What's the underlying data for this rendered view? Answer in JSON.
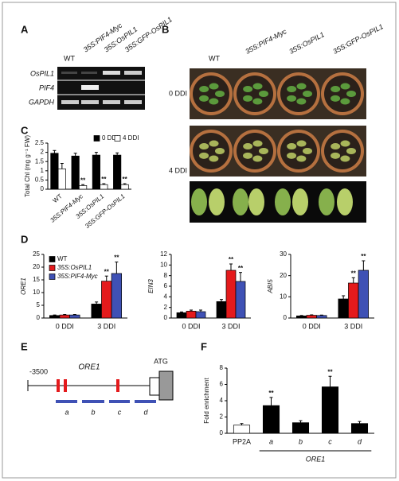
{
  "panel_labels": [
    "A",
    "B",
    "C",
    "D",
    "E",
    "F"
  ],
  "gel": {
    "samples": [
      "WT",
      "35S:PIF4-Myc",
      "35S:OsPIL1",
      "35S:GFP-OsPIL1"
    ],
    "genes": [
      "OsPIL1",
      "PIF4",
      "GAPDH"
    ]
  },
  "photos": {
    "samples": [
      "WT",
      "35S:PIF4-Myc",
      "35S:OsPIL1",
      "35S:GFP-OsPIL1"
    ],
    "conditions": [
      "0 DDI",
      "4 DDI"
    ]
  },
  "promoter": {
    "start": "-3500",
    "gene": "ORE1",
    "atg": "ATG",
    "fragments": [
      "a",
      "b",
      "c",
      "d"
    ]
  },
  "chart_data": [
    {
      "type": "bar",
      "ylabel": "Total Chl (mg g⁻¹ FW)",
      "categories": [
        "WT",
        "35S:PIF4-Myc",
        "35S:OsPIL1",
        "35S:GFP-OsPIL1"
      ],
      "series": [
        {
          "name": "0 DDI",
          "color": "#000000",
          "values": [
            1.95,
            1.8,
            1.85,
            1.85
          ],
          "errors": [
            0.15,
            0.15,
            0.15,
            0.12
          ],
          "significance": [
            null,
            null,
            null,
            null
          ]
        },
        {
          "name": "4 DDI",
          "color": "#ffffff",
          "values": [
            1.1,
            0.2,
            0.25,
            0.25
          ],
          "errors": [
            0.3,
            0.05,
            0.05,
            0.05
          ],
          "significance": [
            null,
            "**",
            "**",
            "**"
          ]
        }
      ],
      "ylim": [
        0,
        2.5
      ],
      "yticks": [
        0,
        0.5,
        1,
        1.5,
        2,
        2.5
      ],
      "legend": true
    },
    {
      "type": "bar",
      "ylabel": "ORE1",
      "categories": [
        "0 DDI",
        "3 DDI"
      ],
      "series": [
        {
          "name": "WT",
          "color": "#000000",
          "values": [
            1,
            5.5
          ],
          "errors": [
            0.2,
            0.8
          ],
          "significance": [
            null,
            null
          ]
        },
        {
          "name": "35S:OsPIL1",
          "color": "#e41a1c",
          "values": [
            1.2,
            14.5
          ],
          "errors": [
            0.2,
            2
          ],
          "significance": [
            null,
            "**"
          ]
        },
        {
          "name": "35S:PIF4-Myc",
          "color": "#3f51b5",
          "values": [
            1.2,
            17.5
          ],
          "errors": [
            0.2,
            4.5
          ],
          "significance": [
            null,
            "**"
          ]
        }
      ],
      "ylim": [
        0,
        25
      ],
      "yticks": [
        0,
        5,
        10,
        15,
        20,
        25
      ],
      "legend": true
    },
    {
      "type": "bar",
      "ylabel": "EIN3",
      "categories": [
        "0 DDI",
        "3 DDI"
      ],
      "series": [
        {
          "color": "#000000",
          "values": [
            1,
            3.1
          ],
          "errors": [
            0.15,
            0.4
          ],
          "significance": [
            null,
            null
          ]
        },
        {
          "color": "#e41a1c",
          "values": [
            1.3,
            9
          ],
          "errors": [
            0.2,
            1.2
          ],
          "significance": [
            null,
            "**"
          ]
        },
        {
          "color": "#3f51b5",
          "values": [
            1.2,
            6.9
          ],
          "errors": [
            0.3,
            1.7
          ],
          "significance": [
            null,
            "**"
          ]
        }
      ],
      "ylim": [
        0,
        12
      ],
      "yticks": [
        0,
        2,
        4,
        6,
        8,
        10,
        12
      ],
      "legend": false
    },
    {
      "type": "bar",
      "ylabel": "ABI5",
      "categories": [
        "0 DDI",
        "3 DDI"
      ],
      "series": [
        {
          "color": "#000000",
          "values": [
            1,
            9
          ],
          "errors": [
            0.2,
            1.5
          ],
          "significance": [
            null,
            null
          ]
        },
        {
          "color": "#e41a1c",
          "values": [
            1.3,
            16.5
          ],
          "errors": [
            0.2,
            2.5
          ],
          "significance": [
            null,
            "**"
          ]
        },
        {
          "color": "#3f51b5",
          "values": [
            1.2,
            22.5
          ],
          "errors": [
            0.2,
            4.5
          ],
          "significance": [
            null,
            "**"
          ]
        }
      ],
      "ylim": [
        0,
        30
      ],
      "yticks": [
        0,
        10,
        20,
        30
      ],
      "legend": false
    },
    {
      "type": "bar",
      "ylabel": "Fold enrichment",
      "categories": [
        "PP2A",
        "a",
        "b",
        "c",
        "d"
      ],
      "series": [
        {
          "colors": [
            "#ffffff",
            "#000000",
            "#000000",
            "#000000",
            "#000000"
          ],
          "values": [
            1,
            3.4,
            1.3,
            5.7,
            1.2
          ],
          "errors": [
            0.2,
            1,
            0.25,
            1.3,
            0.25
          ],
          "significance": [
            null,
            "**",
            null,
            "**",
            null
          ]
        }
      ],
      "ylim": [
        0,
        8
      ],
      "yticks": [
        0,
        2,
        4,
        6,
        8
      ],
      "legend": false,
      "group_label": "ORE1"
    }
  ]
}
